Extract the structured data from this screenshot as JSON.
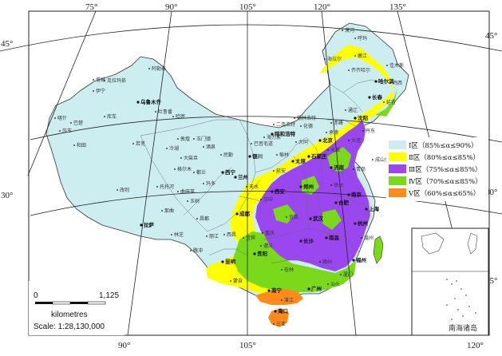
{
  "coords": {
    "top": [
      "75°",
      "90°",
      "105°",
      "120°",
      "135°"
    ],
    "bottom": [
      "90°",
      "105°",
      "120°"
    ],
    "left": [
      "45°",
      "30°"
    ],
    "right": [
      "45°",
      "30°",
      "15°"
    ]
  },
  "legend": [
    {
      "label": "Ⅰ区（85%≤α≤90%）",
      "color": "#cdeef0"
    },
    {
      "label": "Ⅱ区（80%≤α≤85%）",
      "color": "#ffff00"
    },
    {
      "label": "Ⅲ区（75%≤α≤85%）",
      "color": "#9a47f0"
    },
    {
      "label": "Ⅳ区（70%≤α≤85%）",
      "color": "#7ad91a"
    },
    {
      "label": "Ⅴ区（60%≤α≤65%）",
      "color": "#ff8c1a"
    }
  ],
  "scale": {
    "zero": "0",
    "max": "1,125",
    "unit": "kilometres",
    "ratio": "Scale: 1:28,130,000"
  },
  "inset": {
    "label": "南海诸岛"
  },
  "cities": [
    {
      "name": "乌鲁木齐",
      "cap": true
    },
    {
      "name": "伊宁"
    },
    {
      "name": "克拉玛依"
    },
    {
      "name": "阿勒泰"
    },
    {
      "name": "塔城"
    },
    {
      "name": "库车"
    },
    {
      "name": "喀什"
    },
    {
      "name": "巴楚"
    },
    {
      "name": "莎车"
    },
    {
      "name": "和田"
    },
    {
      "name": "哈密"
    },
    {
      "name": "若羌"
    },
    {
      "name": "吐鲁番"
    },
    {
      "name": "敦煌"
    },
    {
      "name": "玉门镇"
    },
    {
      "name": "酒泉"
    },
    {
      "name": "冷湖"
    },
    {
      "name": "大柴旦"
    },
    {
      "name": "格尔木"
    },
    {
      "name": "都兰"
    },
    {
      "name": "西宁",
      "cap": true
    },
    {
      "name": "兰州",
      "cap": true
    },
    {
      "name": "民勤"
    },
    {
      "name": "银川",
      "cap": true
    },
    {
      "name": "巴音毛道"
    },
    {
      "name": "海力素"
    },
    {
      "name": "呼和浩特",
      "cap": true
    },
    {
      "name": "二连浩特"
    },
    {
      "name": "锡林浩特"
    },
    {
      "name": "化德"
    },
    {
      "name": "托托河"
    },
    {
      "name": "曲麻莱"
    },
    {
      "name": "玉树"
    },
    {
      "name": "玛多"
    },
    {
      "name": "改则"
    },
    {
      "name": "拉萨",
      "cap": true
    },
    {
      "name": "那曲"
    },
    {
      "name": "昌都"
    },
    {
      "name": "林芝"
    },
    {
      "name": "成都",
      "cap": true
    },
    {
      "name": "西安",
      "cap": true
    },
    {
      "name": "太原",
      "cap": true
    },
    {
      "name": "北京",
      "cap": true
    },
    {
      "name": "天津"
    },
    {
      "name": "石家庄",
      "cap": true
    },
    {
      "name": "济南",
      "cap": true
    },
    {
      "name": "郑州",
      "cap": true
    },
    {
      "name": "武汉",
      "cap": true
    },
    {
      "name": "长沙",
      "cap": true
    },
    {
      "name": "南昌",
      "cap": true
    },
    {
      "name": "合肥",
      "cap": true
    },
    {
      "name": "南京",
      "cap": true
    },
    {
      "name": "上海",
      "cap": true
    },
    {
      "name": "杭州",
      "cap": true
    },
    {
      "name": "福州",
      "cap": true
    },
    {
      "name": "广州",
      "cap": true
    },
    {
      "name": "南宁",
      "cap": true
    },
    {
      "name": "贵阳",
      "cap": true
    },
    {
      "name": "昆明",
      "cap": true
    },
    {
      "name": "海口",
      "cap": true
    },
    {
      "name": "重庆"
    },
    {
      "name": "沈阳",
      "cap": true
    },
    {
      "name": "长春",
      "cap": true
    },
    {
      "name": "哈尔滨",
      "cap": true
    },
    {
      "name": "呼玛"
    },
    {
      "name": "漠河"
    },
    {
      "name": "嫩江"
    },
    {
      "name": "海拉尔"
    },
    {
      "name": "齐齐哈尔"
    },
    {
      "name": "佳木斯"
    },
    {
      "name": "鸡西"
    },
    {
      "name": "延吉"
    },
    {
      "name": "大连"
    },
    {
      "name": "青岛"
    },
    {
      "name": "成山头"
    },
    {
      "name": "徐州"
    },
    {
      "name": "厦门"
    },
    {
      "name": "汕头"
    },
    {
      "name": "湛江"
    },
    {
      "name": "三亚"
    },
    {
      "name": "蒙自"
    },
    {
      "name": "腾冲"
    },
    {
      "name": "丽江"
    },
    {
      "name": "西昌"
    },
    {
      "name": "宜宾"
    },
    {
      "name": "遵义"
    },
    {
      "name": "桂林"
    },
    {
      "name": "赣州"
    },
    {
      "name": "温州"
    },
    {
      "name": "宜昌"
    },
    {
      "name": "汉中"
    },
    {
      "name": "天水"
    },
    {
      "name": "延安"
    },
    {
      "name": "榆林"
    },
    {
      "name": "大同"
    },
    {
      "name": "承德"
    },
    {
      "name": "赤峰"
    },
    {
      "name": "通辽"
    },
    {
      "name": "丹东"
    }
  ]
}
